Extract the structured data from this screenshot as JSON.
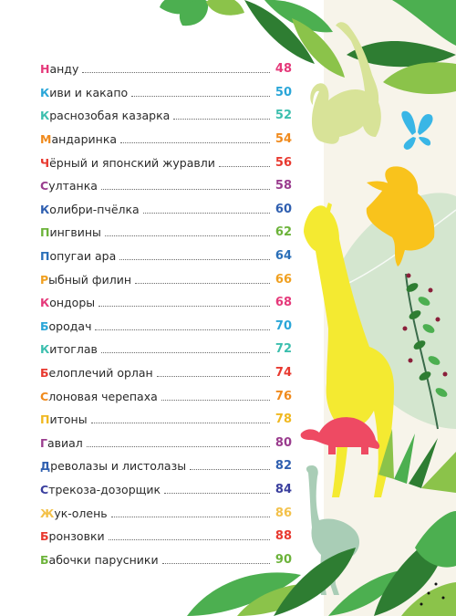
{
  "toc": [
    {
      "initial": "Н",
      "rest": "анду",
      "page": "48",
      "color": "#e5397a"
    },
    {
      "initial": "К",
      "rest": "иви и какапо",
      "page": "50",
      "color": "#2aa6d8"
    },
    {
      "initial": "К",
      "rest": "раснозобая казарка",
      "page": "52",
      "color": "#3cbfae"
    },
    {
      "initial": "М",
      "rest": "андаринка",
      "page": "54",
      "color": "#f08a1c"
    },
    {
      "initial": "Ч",
      "rest": "ёрный и японский журавли",
      "page": "56",
      "color": "#e8392f"
    },
    {
      "initial": "С",
      "rest": "ултанка",
      "page": "58",
      "color": "#9a3c8e"
    },
    {
      "initial": "К",
      "rest": "олибри-пчёлка",
      "page": "60",
      "color": "#2f5fb0"
    },
    {
      "initial": "П",
      "rest": "ингвины",
      "page": "62",
      "color": "#6cb33a"
    },
    {
      "initial": "П",
      "rest": "опугаи ара",
      "page": "64",
      "color": "#2a6fb8"
    },
    {
      "initial": "Р",
      "rest": "ыбный филин",
      "page": "66",
      "color": "#f0a020"
    },
    {
      "initial": "К",
      "rest": "ондоры",
      "page": "68",
      "color": "#e5397a"
    },
    {
      "initial": "Б",
      "rest": "ородач",
      "page": "70",
      "color": "#2aa6d8"
    },
    {
      "initial": "К",
      "rest": "итоглав",
      "page": "72",
      "color": "#3cbfae"
    },
    {
      "initial": "Б",
      "rest": "елоплечий орлан",
      "page": "74",
      "color": "#e8392f"
    },
    {
      "initial": "С",
      "rest": "лоновая черепаха",
      "page": "76",
      "color": "#f08a1c"
    },
    {
      "initial": "П",
      "rest": "итоны",
      "page": "78",
      "color": "#f0b820"
    },
    {
      "initial": "Г",
      "rest": "авиал",
      "page": "80",
      "color": "#9a3c8e"
    },
    {
      "initial": "Д",
      "rest": "револазы и листолазы",
      "page": "82",
      "color": "#2f5fb0"
    },
    {
      "initial": "С",
      "rest": "трекоза-дозорщик",
      "page": "84",
      "color": "#3a3f9e"
    },
    {
      "initial": "Ж",
      "rest": "ук-олень",
      "page": "86",
      "color": "#f3c14a"
    },
    {
      "initial": "Б",
      "rest": "ронзовки",
      "page": "88",
      "color": "#e8392f"
    },
    {
      "initial": "Б",
      "rest": "абочки парусники",
      "page": "90",
      "color": "#6cb33a"
    }
  ],
  "illustration": {
    "panel_color": "#f7f4ea",
    "colors": {
      "monkey": "#d8e398",
      "butterfly": "#39b6e6",
      "eagle": "#f9c31c",
      "giraffe": "#f4ea31",
      "turtle": "#ee4a63",
      "ostrich": "#a9cdb6",
      "pale_leaf": "#d4e6cf",
      "leaf_green": "#4caf50",
      "leaf_dark": "#2e7d32",
      "leaf_light": "#8bc34a",
      "berries": "#8a1f3a"
    },
    "icons": [
      "monkey-silhouette-icon",
      "butterfly-icon",
      "eagle-silhouette-icon",
      "giraffe-silhouette-icon",
      "turtle-silhouette-icon",
      "ostrich-silhouette-icon"
    ]
  }
}
